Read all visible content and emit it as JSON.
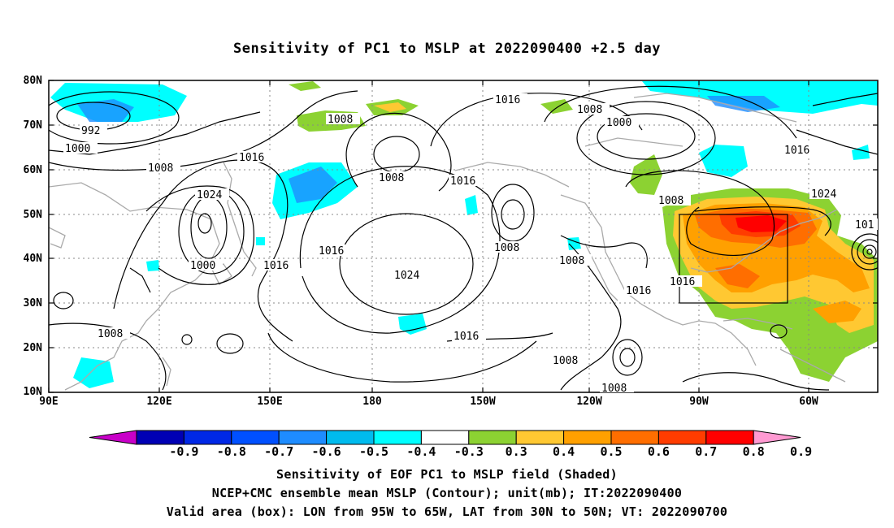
{
  "title": "Sensitivity of PC1 to MSLP at 2022090400 +2.5 day",
  "lat_ticks": [
    "80N",
    "70N",
    "60N",
    "50N",
    "40N",
    "30N",
    "20N",
    "10N"
  ],
  "lon_ticks": [
    "90E",
    "120E",
    "150E",
    "180",
    "150W",
    "120W",
    "90W",
    "60W"
  ],
  "contour_labels": [
    "992",
    "1000",
    "1008",
    "1016",
    "1024",
    "1008",
    "1000",
    "1008",
    "1016",
    "1008",
    "1016",
    "1024",
    "1016",
    "1016",
    "1008",
    "1008",
    "1016",
    "1008",
    "1016",
    "1008",
    "1000",
    "1016",
    "1008",
    "1024",
    "1016",
    "1008",
    "1016",
    "1008",
    "101"
  ],
  "colorbar": {
    "labels": [
      "-0.9",
      "-0.8",
      "-0.7",
      "-0.6",
      "-0.5",
      "-0.4",
      "-0.3",
      "0.3",
      "0.4",
      "0.5",
      "0.6",
      "0.7",
      "0.8",
      "0.9"
    ],
    "colors": [
      "#c800c8",
      "#0000b4",
      "#0028e6",
      "#0050ff",
      "#1e8cff",
      "#00bbee",
      "#00ffff",
      "#ffffff",
      "#8cd232",
      "#ffc832",
      "#ffa000",
      "#ff6e00",
      "#ff3c00",
      "#ff0000",
      "#ff9ad2"
    ]
  },
  "captions": {
    "line1": "Sensitivity of EOF PC1 to MSLP field (Shaded)",
    "line2": "NCEP+CMC ensemble mean MSLP (Contour); unit(mb); IT:2022090400",
    "line3": "Valid area (box): LON from 95W to 65W, LAT from 30N to 50N; VT: 2022090700"
  },
  "valid_box": {
    "lon_min": -95,
    "lon_max": -65,
    "lat_min": 30,
    "lat_max": 50
  }
}
